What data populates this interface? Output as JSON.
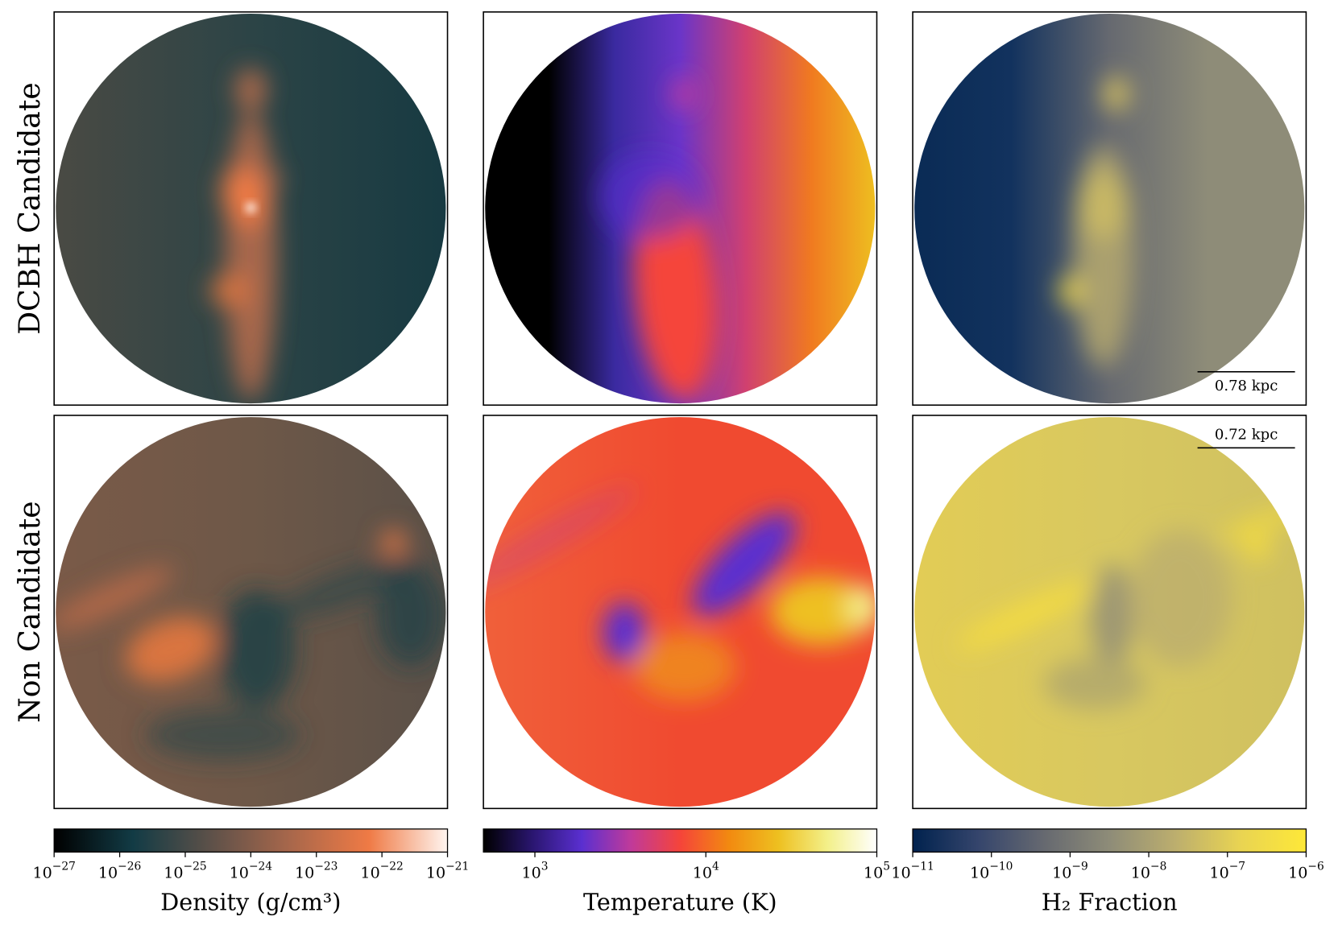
{
  "row_labels": [
    "DCBH Candidate",
    "Non Candidate"
  ],
  "scale_bars": [
    "0.78 kpc",
    "0.72 kpc"
  ],
  "colorbars": [
    {
      "label": "Density (g/cm³)",
      "log": true,
      "xlim": [
        1e-27,
        1e-21
      ],
      "xticks": [
        {
          "value": 1e-27,
          "label": "10−27"
        },
        {
          "value": 1e-26,
          "label": "10−26"
        },
        {
          "value": 1e-25,
          "label": "10−25"
        },
        {
          "value": 1e-24,
          "label": "10−24"
        },
        {
          "value": 1e-23,
          "label": "10−23"
        },
        {
          "value": 1e-22,
          "label": "10−22"
        },
        {
          "value": 1e-21,
          "label": "10−21"
        }
      ],
      "colors": [
        "#000000",
        "#123b45",
        "#5e5149",
        "#a8674b",
        "#ef7a45",
        "#fff5f0"
      ]
    },
    {
      "label": "Temperature (K)",
      "log": true,
      "xlim": [
        500,
        100000
      ],
      "xticks": [
        {
          "value": 1000,
          "label": "103"
        },
        {
          "value": 10000,
          "label": "104"
        },
        {
          "value": 100000,
          "label": "105"
        }
      ],
      "colors": [
        "#000000",
        "#2a1670",
        "#5a2fd0",
        "#c03a9a",
        "#f5443a",
        "#f28a10",
        "#eec020",
        "#f3f08a",
        "#ffffff"
      ]
    },
    {
      "label": "H₂ Fraction",
      "log": true,
      "xlim": [
        1e-11,
        1e-06
      ],
      "xticks": [
        {
          "value": 1e-11,
          "label": "10−11"
        },
        {
          "value": 1e-10,
          "label": "10−10"
        },
        {
          "value": 1e-09,
          "label": "10−9"
        },
        {
          "value": 1e-08,
          "label": "10−8"
        },
        {
          "value": 1e-07,
          "label": "10−7"
        },
        {
          "value": 1e-06,
          "label": "10−6"
        }
      ],
      "colors": [
        "#00224e",
        "#35456c",
        "#666970",
        "#8e8c78",
        "#bcae6e",
        "#e9d452",
        "#fee838"
      ]
    }
  ]
}
